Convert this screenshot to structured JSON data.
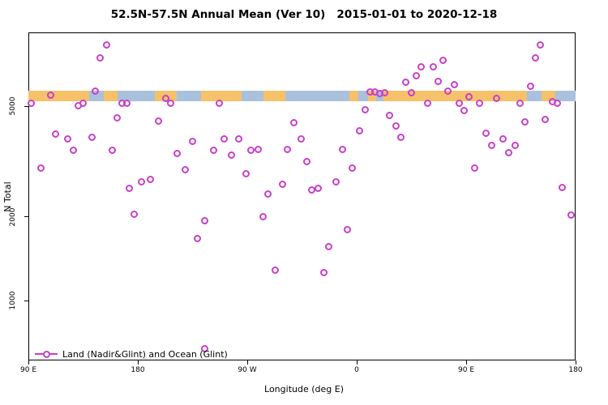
{
  "title": "52.5N-57.5N Annual Mean (Ver 10)   2015-01-01 to 2020-12-18",
  "legend": {
    "label": "Land (Nadir&Glint) and Ocean (Glint)"
  },
  "colors": {
    "point": "#C93ECB",
    "ocean": "#A9C1DD",
    "land": "#F5C169"
  },
  "chart_data": {
    "type": "scatter",
    "title": "52.5N-57.5N Annual Mean (Ver 10)   2015-01-01 to 2020-12-18",
    "xlabel": "Longitude (deg E)",
    "ylabel": "N Total",
    "grid": false,
    "legend_position": "bottom-left",
    "legend_entries": [
      "Land (Nadir&Glint) and Ocean (Glint)"
    ],
    "x_axis": {
      "range": [
        90,
        540
      ],
      "tick_values": [
        90,
        180,
        270,
        360,
        450,
        540
      ],
      "tick_labels": [
        "90 E",
        "180",
        "90 W",
        "0",
        "90 E",
        "180"
      ]
    },
    "y_axis": {
      "scale": "log",
      "range": [
        610,
        9200
      ],
      "tick_values": [
        1000,
        2000,
        5000
      ],
      "tick_labels": [
        "1000",
        "2000",
        "5000"
      ]
    },
    "band": {
      "description": "land(orange)/ocean(blue) surface strip along latitude belt",
      "center_value": 5430,
      "segments": [
        {
          "from": 90,
          "to": 140,
          "surface": "land"
        },
        {
          "from": 140,
          "to": 152,
          "surface": "ocean"
        },
        {
          "from": 152,
          "to": 163,
          "surface": "land"
        },
        {
          "from": 163,
          "to": 194,
          "surface": "ocean"
        },
        {
          "from": 194,
          "to": 212,
          "surface": "land"
        },
        {
          "from": 212,
          "to": 232,
          "surface": "ocean"
        },
        {
          "from": 232,
          "to": 265,
          "surface": "land"
        },
        {
          "from": 265,
          "to": 283,
          "surface": "ocean"
        },
        {
          "from": 283,
          "to": 301,
          "surface": "land"
        },
        {
          "from": 301,
          "to": 354,
          "surface": "ocean"
        },
        {
          "from": 354,
          "to": 361,
          "surface": "land"
        },
        {
          "from": 361,
          "to": 369,
          "surface": "ocean"
        },
        {
          "from": 369,
          "to": 376,
          "surface": "land"
        },
        {
          "from": 376,
          "to": 382,
          "surface": "ocean"
        },
        {
          "from": 382,
          "to": 500,
          "surface": "land"
        },
        {
          "from": 500,
          "to": 512,
          "surface": "ocean"
        },
        {
          "from": 512,
          "to": 523,
          "surface": "land"
        },
        {
          "from": 523,
          "to": 540,
          "surface": "ocean"
        }
      ]
    },
    "points": [
      [
        92,
        5110
      ],
      [
        100,
        2985
      ],
      [
        108,
        5470
      ],
      [
        112,
        3960
      ],
      [
        122,
        3800
      ],
      [
        127,
        3460
      ],
      [
        131,
        5010
      ],
      [
        135,
        5110
      ],
      [
        142,
        3855
      ],
      [
        145,
        5650
      ],
      [
        149,
        7450
      ],
      [
        154,
        8280
      ],
      [
        159,
        3460
      ],
      [
        163,
        4530
      ],
      [
        167,
        5110
      ],
      [
        171,
        5110
      ],
      [
        173,
        2540
      ],
      [
        177,
        2040
      ],
      [
        183,
        2670
      ],
      [
        190,
        2720
      ],
      [
        197,
        4410
      ],
      [
        203,
        5320
      ],
      [
        207,
        5110
      ],
      [
        212,
        3370
      ],
      [
        219,
        2945
      ],
      [
        225,
        3730
      ],
      [
        229,
        1666
      ],
      [
        235,
        1930
      ],
      [
        235,
        673
      ],
      [
        242,
        3460
      ],
      [
        247,
        5110
      ],
      [
        251,
        3815
      ],
      [
        257,
        3330
      ],
      [
        263,
        3815
      ],
      [
        269,
        2850
      ],
      [
        273,
        3460
      ],
      [
        279,
        3485
      ],
      [
        283,
        2000
      ],
      [
        287,
        2410
      ],
      [
        293,
        1282
      ],
      [
        299,
        2610
      ],
      [
        303,
        3485
      ],
      [
        308,
        4345
      ],
      [
        314,
        3800
      ],
      [
        319,
        3155
      ],
      [
        323,
        2495
      ],
      [
        328,
        2540
      ],
      [
        333,
        1257
      ],
      [
        337,
        1557
      ],
      [
        343,
        2670
      ],
      [
        348,
        3485
      ],
      [
        352,
        1795
      ],
      [
        356,
        2985
      ],
      [
        362,
        4070
      ],
      [
        367,
        4840
      ],
      [
        371,
        5610
      ],
      [
        375,
        5610
      ],
      [
        379,
        5535
      ],
      [
        383,
        5570
      ],
      [
        387,
        4625
      ],
      [
        392,
        4235
      ],
      [
        396,
        3855
      ],
      [
        400,
        6080
      ],
      [
        405,
        5570
      ],
      [
        409,
        6425
      ],
      [
        413,
        6920
      ],
      [
        418,
        5110
      ],
      [
        423,
        6920
      ],
      [
        427,
        6140
      ],
      [
        431,
        7295
      ],
      [
        435,
        5650
      ],
      [
        440,
        5970
      ],
      [
        444,
        5110
      ],
      [
        448,
        4815
      ],
      [
        452,
        5395
      ],
      [
        457,
        2985
      ],
      [
        461,
        5110
      ],
      [
        466,
        3990
      ],
      [
        471,
        3605
      ],
      [
        475,
        5320
      ],
      [
        480,
        3800
      ],
      [
        485,
        3400
      ],
      [
        490,
        3605
      ],
      [
        494,
        5110
      ],
      [
        498,
        4375
      ],
      [
        503,
        5890
      ],
      [
        507,
        7450
      ],
      [
        511,
        8280
      ],
      [
        515,
        4465
      ],
      [
        521,
        5175
      ],
      [
        525,
        5110
      ],
      [
        529,
        2555
      ],
      [
        536,
        2025
      ]
    ]
  }
}
